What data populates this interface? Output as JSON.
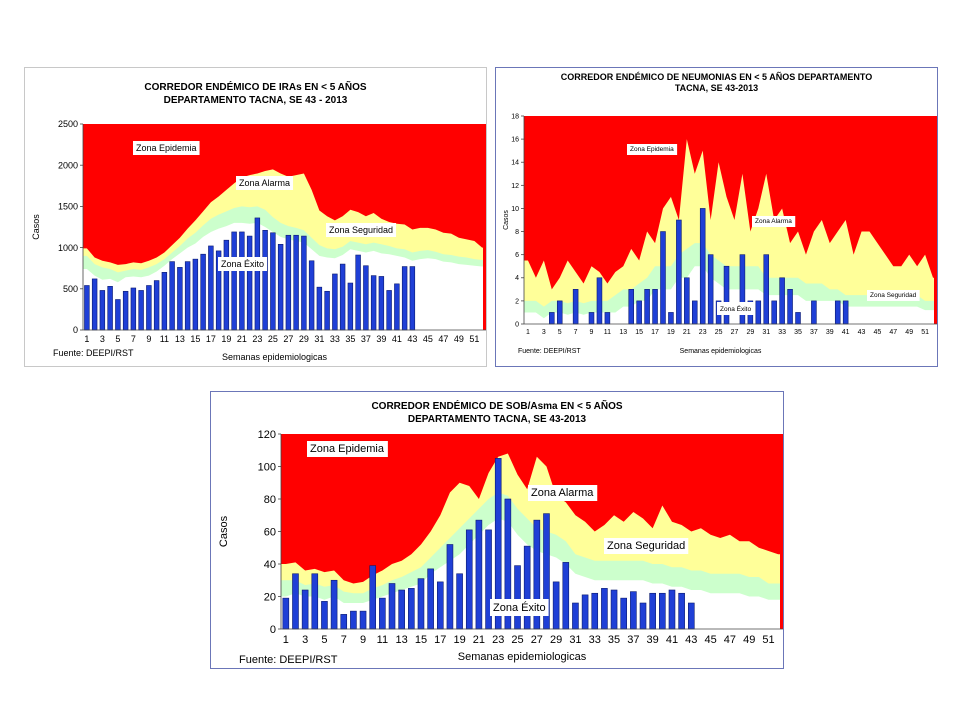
{
  "colors": {
    "epidemia": "#ff0000",
    "alarma": "#ffff99",
    "seguridad": "#ccffcc",
    "exito": "#ffffff",
    "bar_fill": "#1f3fd6",
    "bar_stroke": "#0b1a6e"
  },
  "chart_data": [
    {
      "type": "bar",
      "title": "CORREDOR ENDÉMICO DE IRAs EN < 5 AÑOS\nDEPARTAMENTO TACNA,  SE 43  - 2013",
      "xlabel": "Semanas epidemiologicas",
      "ylabel": "Casos",
      "source": "Fuente:  DEEPI/RST",
      "ylim": [
        0,
        2500
      ],
      "yticks": [
        "0",
        "500",
        "1000",
        "1500",
        "2000",
        "2500"
      ],
      "xticks": [
        "1",
        "3",
        "5",
        "7",
        "9",
        "11",
        "13",
        "15",
        "17",
        "19",
        "21",
        "23",
        "25",
        "27",
        "29",
        "31",
        "33",
        "35",
        "37",
        "39",
        "41",
        "43",
        "45",
        "47",
        "49",
        "51"
      ],
      "zone_labels": [
        "Zona Epidemia",
        "Zona Alarma",
        "Zona Seguridad",
        "Zona Éxito"
      ],
      "series": [
        {
          "name": "Casos",
          "values": [
            540,
            620,
            480,
            530,
            370,
            470,
            510,
            480,
            540,
            600,
            700,
            830,
            760,
            830,
            860,
            920,
            1020,
            960,
            1090,
            1190,
            1190,
            1140,
            1360,
            1210,
            1180,
            1040,
            1150,
            1150,
            1140,
            840,
            520,
            470,
            680,
            800,
            570,
            910,
            780,
            660,
            650,
            480,
            560,
            770,
            770
          ]
        },
        {
          "name": "Zona Éxito",
          "values": [
            740,
            660,
            610,
            620,
            580,
            640,
            650,
            640,
            660,
            710,
            780,
            860,
            930,
            1000,
            1050,
            1130,
            1190,
            1230,
            1260,
            1300,
            1300,
            1290,
            1300,
            1250,
            1190,
            1130,
            1100,
            1080,
            1060,
            980,
            900,
            880,
            870,
            910,
            980,
            960,
            940,
            960,
            930,
            920,
            900,
            880,
            840,
            860,
            870,
            860,
            830,
            820,
            800,
            790,
            780,
            770
          ]
        },
        {
          "name": "Zona Seguridad",
          "values": [
            900,
            800,
            760,
            740,
            700,
            720,
            740,
            730,
            760,
            800,
            860,
            940,
            1020,
            1110,
            1180,
            1270,
            1350,
            1400,
            1440,
            1480,
            1500,
            1490,
            1500,
            1460,
            1370,
            1300,
            1260,
            1240,
            1210,
            1120,
            1030,
            990,
            980,
            1010,
            1080,
            1060,
            1040,
            1060,
            1040,
            1020,
            990,
            980,
            940,
            960,
            970,
            950,
            920,
            910,
            890,
            880,
            860,
            850
          ]
        },
        {
          "name": "Zona Alarma",
          "values": [
            990,
            880,
            840,
            820,
            790,
            800,
            820,
            810,
            840,
            880,
            940,
            1030,
            1120,
            1230,
            1330,
            1440,
            1550,
            1620,
            1700,
            1780,
            1850,
            1880,
            1900,
            1930,
            1950,
            1900,
            1860,
            1880,
            1900,
            1700,
            1450,
            1380,
            1330,
            1380,
            1460,
            1430,
            1380,
            1420,
            1350,
            1310,
            1290,
            1280,
            1220,
            1240,
            1240,
            1220,
            1180,
            1170,
            1120,
            1100,
            1080,
            1000
          ]
        }
      ]
    },
    {
      "type": "bar",
      "title": "CORREDOR ENDÉMICO DE NEUMONIAS EN < 5 AÑOS  DEPARTAMENTO\nTACNA,  SE 43-2013",
      "xlabel": "Semanas epidemiologicas",
      "ylabel": "Casos",
      "source": "Fuente: DEEPI/RST",
      "ylim": [
        0,
        18
      ],
      "yticks": [
        "0",
        "2",
        "4",
        "6",
        "8",
        "10",
        "12",
        "14",
        "16",
        "18"
      ],
      "xticks": [
        "1",
        "3",
        "5",
        "7",
        "9",
        "11",
        "13",
        "15",
        "17",
        "19",
        "21",
        "23",
        "25",
        "27",
        "29",
        "31",
        "33",
        "35",
        "37",
        "39",
        "41",
        "43",
        "45",
        "47",
        "49",
        "51"
      ],
      "zone_labels": [
        "Zona Epidemia",
        "Zona Alarma",
        "Zona Seguridad",
        "Zona Éxito"
      ],
      "series": [
        {
          "name": "Casos",
          "values": [
            0,
            0,
            0,
            1,
            2,
            0,
            3,
            0,
            1,
            4,
            1,
            0,
            0,
            3,
            2,
            3,
            3,
            8,
            1,
            9,
            4,
            2,
            10,
            6,
            2,
            5,
            0,
            6,
            2,
            2,
            6,
            2,
            4,
            3,
            1,
            0,
            2,
            0,
            0,
            2,
            2,
            0,
            0
          ]
        },
        {
          "name": "Zona Éxito",
          "values": [
            1,
            1,
            0.5,
            1,
            1,
            0.8,
            1,
            0.8,
            1,
            1,
            1,
            1,
            1.5,
            1.5,
            2,
            2,
            3,
            3,
            3,
            4,
            4,
            5,
            5,
            4,
            3.5,
            3,
            3,
            3,
            3,
            3,
            2.5,
            2.5,
            2.5,
            2.5,
            2.5,
            2,
            2,
            2,
            2,
            2,
            1.5,
            1.5,
            1.5,
            1.5,
            1.5,
            1.5,
            1.5,
            1.5,
            1.5,
            1.5,
            1.2,
            1.2
          ]
        },
        {
          "name": "Zona Seguridad",
          "values": [
            2,
            2,
            1.5,
            2,
            2,
            1.8,
            2,
            1.8,
            2,
            2,
            2,
            2.5,
            3,
            3,
            3.5,
            4,
            5,
            5,
            5,
            6,
            6.5,
            7,
            7,
            6,
            5.5,
            5,
            5,
            5,
            5,
            5,
            4,
            4,
            4,
            4,
            4,
            3.5,
            3.5,
            3.5,
            3,
            3,
            2.5,
            2.5,
            2.5,
            2.5,
            2.5,
            2.5,
            2.5,
            2.5,
            2.5,
            2.5,
            2,
            2
          ]
        },
        {
          "name": "Zona Alarma",
          "values": [
            5.5,
            4,
            5.5,
            3,
            4,
            5.5,
            4.5,
            3.5,
            5,
            4.5,
            3.5,
            4.5,
            5,
            6.5,
            5.5,
            8,
            7,
            10,
            11,
            9,
            16,
            13,
            15,
            9,
            14,
            11,
            9,
            13,
            8,
            10,
            13,
            9,
            10,
            7,
            8,
            6,
            8,
            9,
            7,
            8,
            9,
            6,
            8,
            8,
            7,
            6,
            5,
            5,
            6,
            5,
            6,
            4
          ]
        }
      ]
    },
    {
      "type": "bar",
      "title": "CORREDOR ENDÉMICO DE SOB/Asma EN < 5 AÑOS\nDEPARTAMENTO TACNA,  SE 43-2013",
      "xlabel": "Semanas epidemiologicas",
      "ylabel": "Casos",
      "source": "Fuente:  DEEPI/RST",
      "ylim": [
        0,
        120
      ],
      "yticks": [
        "0",
        "20",
        "40",
        "60",
        "80",
        "100",
        "120"
      ],
      "xticks": [
        "1",
        "3",
        "5",
        "7",
        "9",
        "11",
        "13",
        "15",
        "17",
        "19",
        "21",
        "23",
        "25",
        "27",
        "29",
        "31",
        "33",
        "35",
        "37",
        "39",
        "41",
        "43",
        "45",
        "47",
        "49",
        "51"
      ],
      "zone_labels": [
        "Zona Epidemia",
        "Zona Alarma",
        "Zona Seguridad",
        "Zona Éxito"
      ],
      "series": [
        {
          "name": "Casos",
          "values": [
            19,
            34,
            24,
            34,
            17,
            30,
            9,
            11,
            11,
            39,
            19,
            28,
            24,
            25,
            31,
            37,
            29,
            52,
            34,
            61,
            67,
            61,
            105,
            80,
            39,
            51,
            67,
            71,
            29,
            41,
            16,
            21,
            22,
            25,
            24,
            19,
            23,
            16,
            22,
            22,
            24,
            22,
            16
          ]
        },
        {
          "name": "Zona Éxito",
          "values": [
            20,
            22,
            20,
            20,
            18,
            20,
            16,
            16,
            16,
            18,
            20,
            22,
            24,
            26,
            28,
            34,
            38,
            42,
            46,
            52,
            58,
            64,
            68,
            66,
            58,
            52,
            48,
            46,
            44,
            40,
            34,
            32,
            30,
            30,
            30,
            30,
            30,
            30,
            28,
            28,
            26,
            26,
            24,
            24,
            22,
            22,
            22,
            22,
            20,
            20,
            18,
            18
          ]
        },
        {
          "name": "Zona Seguridad",
          "values": [
            30,
            30,
            27,
            28,
            26,
            27,
            23,
            22,
            22,
            25,
            27,
            30,
            32,
            35,
            38,
            44,
            50,
            56,
            62,
            68,
            74,
            80,
            84,
            82,
            74,
            68,
            62,
            60,
            58,
            54,
            46,
            44,
            42,
            42,
            42,
            42,
            42,
            42,
            40,
            40,
            38,
            38,
            36,
            36,
            34,
            34,
            34,
            34,
            32,
            32,
            28,
            28
          ]
        },
        {
          "name": "Zona Alarma",
          "values": [
            40,
            41,
            36,
            37,
            35,
            36,
            30,
            28,
            29,
            33,
            36,
            40,
            42,
            46,
            52,
            60,
            70,
            84,
            90,
            88,
            80,
            96,
            106,
            108,
            95,
            86,
            106,
            100,
            82,
            78,
            70,
            66,
            60,
            64,
            70,
            66,
            72,
            68,
            62,
            76,
            66,
            64,
            60,
            62,
            58,
            56,
            58,
            54,
            54,
            50,
            48,
            46
          ]
        }
      ]
    }
  ]
}
